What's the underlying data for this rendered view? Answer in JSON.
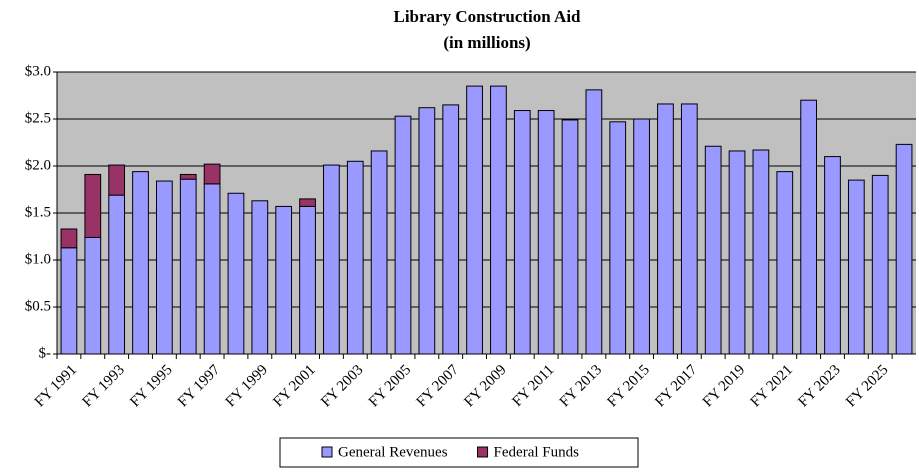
{
  "chart_data": {
    "type": "stacked_bar",
    "title": "Library Construction Aid",
    "subtitle": "(in millions)",
    "categories": [
      "FY 1991",
      null,
      "FY 1993",
      null,
      "FY 1995",
      null,
      "FY 1997",
      null,
      "FY 1999",
      null,
      "FY 2001",
      null,
      "FY 2003",
      null,
      "FY 2005",
      null,
      "FY 2007",
      null,
      "FY 2009",
      null,
      "FY 2011",
      null,
      "FY 2013",
      null,
      "FY 2015",
      null,
      "FY 2017",
      null,
      "FY 2019",
      null,
      "FY 2021",
      null,
      "FY 2023",
      null,
      "FY 2025",
      null
    ],
    "series": [
      {
        "name": "General Revenues",
        "color": "#9999ff",
        "values": [
          1.13,
          1.24,
          1.69,
          1.94,
          1.84,
          1.86,
          1.81,
          1.71,
          1.63,
          1.57,
          1.57,
          2.01,
          2.05,
          2.16,
          2.53,
          2.62,
          2.65,
          2.85,
          2.85,
          2.59,
          2.59,
          2.49,
          2.81,
          2.47,
          2.5,
          2.66,
          2.66,
          2.21,
          2.16,
          2.17,
          1.94,
          2.7,
          2.1,
          1.85,
          1.9,
          2.23
        ]
      },
      {
        "name": "Federal Funds",
        "color": "#993366",
        "values": [
          0.2,
          0.67,
          0.32,
          0,
          0,
          0.05,
          0.21,
          0,
          0,
          0,
          0.08,
          0,
          0,
          0,
          0,
          0,
          0,
          0,
          0,
          0,
          0,
          0,
          0,
          0,
          0,
          0,
          0,
          0,
          0,
          0,
          0,
          0,
          0,
          0,
          0,
          0
        ]
      }
    ],
    "ylim": [
      0,
      3
    ],
    "yticks": [
      {
        "value": 0,
        "label": "$-"
      },
      {
        "value": 0.5,
        "label": "$0.5"
      },
      {
        "value": 1,
        "label": "$1.0"
      },
      {
        "value": 1.5,
        "label": "$1.5"
      },
      {
        "value": 2,
        "label": "$2.0"
      },
      {
        "value": 2.5,
        "label": "$2.5"
      },
      {
        "value": 3,
        "label": "$3.0"
      }
    ],
    "grid": true,
    "legend": "bottom"
  }
}
